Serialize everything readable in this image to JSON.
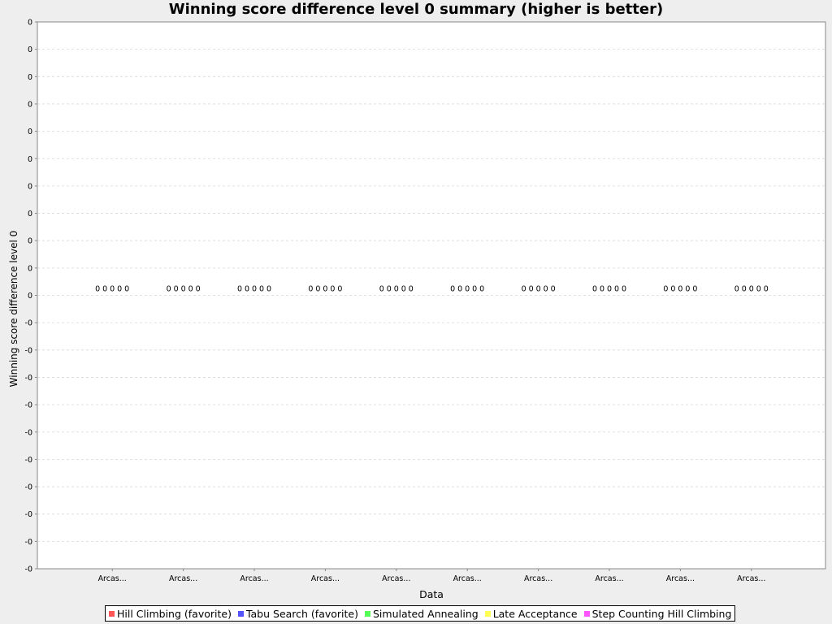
{
  "chart_data": {
    "type": "bar",
    "title": "Winning score difference level 0 summary (higher is better)",
    "xlabel": "Data",
    "ylabel": "Winning score difference level 0",
    "y_tick_labels": [
      "0",
      "0",
      "0",
      "0",
      "0",
      "0",
      "0",
      "0",
      "0",
      "0",
      "0",
      "-0",
      "-0",
      "-0",
      "-0",
      "-0",
      "-0",
      "-0",
      "-0",
      "-0",
      "-0"
    ],
    "categories": [
      "Arcas...",
      "Arcas...",
      "Arcas...",
      "Arcas...",
      "Arcas...",
      "Arcas...",
      "Arcas...",
      "Arcas...",
      "Arcas...",
      "Arcas..."
    ],
    "series": [
      {
        "name": "Hill Climbing (favorite)",
        "color": "#ff5555",
        "values": [
          0,
          0,
          0,
          0,
          0,
          0,
          0,
          0,
          0,
          0
        ],
        "labels": [
          "0",
          "0",
          "0",
          "0",
          "0",
          "0",
          "0",
          "0",
          "0",
          "0"
        ]
      },
      {
        "name": "Tabu Search (favorite)",
        "color": "#5555ff",
        "values": [
          0,
          0,
          0,
          0,
          0,
          0,
          0,
          0,
          0,
          0
        ],
        "labels": [
          "0",
          "0",
          "0",
          "0",
          "0",
          "0",
          "0",
          "0",
          "0",
          "0"
        ]
      },
      {
        "name": "Simulated Annealing",
        "color": "#55ff55",
        "values": [
          0,
          0,
          0,
          0,
          0,
          0,
          0,
          0,
          0,
          0
        ],
        "labels": [
          "0",
          "0",
          "0",
          "0",
          "0",
          "0",
          "0",
          "0",
          "0",
          "0"
        ]
      },
      {
        "name": "Late Acceptance",
        "color": "#ffff55",
        "values": [
          0,
          0,
          0,
          0,
          0,
          0,
          0,
          0,
          0,
          0
        ],
        "labels": [
          "0",
          "0",
          "0",
          "0",
          "0",
          "0",
          "0",
          "0",
          "0",
          "0"
        ]
      },
      {
        "name": "Step Counting Hill Climbing",
        "color": "#ff55ff",
        "values": [
          0,
          0,
          0,
          0,
          0,
          0,
          0,
          0,
          0,
          0
        ],
        "labels": [
          "0",
          "0",
          "0",
          "0",
          "0",
          "0",
          "0",
          "0",
          "0",
          "0"
        ]
      }
    ],
    "grid": true,
    "legend_position": "bottom"
  }
}
